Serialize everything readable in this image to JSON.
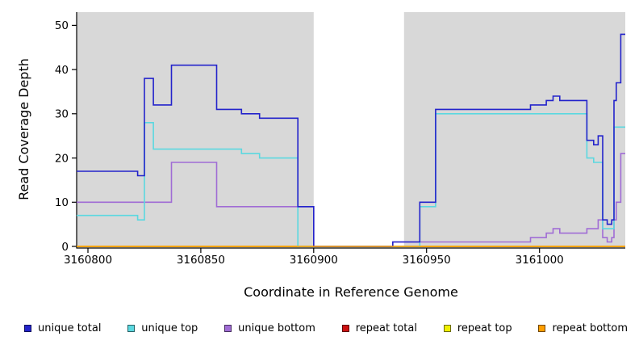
{
  "chart_data": {
    "type": "line",
    "subtype": "step-coverage",
    "title": "",
    "xlabel": "Coordinate in Reference Genome",
    "ylabel": "Read Coverage Depth",
    "xlim": [
      3160795,
      3161038
    ],
    "ylim": [
      0,
      53
    ],
    "x_ticks": [
      3160800,
      3160850,
      3160900,
      3160950,
      3161000
    ],
    "y_ticks": [
      0,
      10,
      20,
      30,
      40,
      50
    ],
    "grid": false,
    "legend_position": "bottom",
    "plot_background": "#ffffff",
    "shaded_regions": [
      {
        "x0": 3160795,
        "x1": 3160900,
        "color": "#d8d8d8"
      },
      {
        "x0": 3160940,
        "x1": 3161038,
        "color": "#d8d8d8"
      }
    ],
    "draw_order": [
      "repeat total",
      "repeat top",
      "unique bottom",
      "unique top",
      "unique total",
      "repeat bottom"
    ],
    "series": [
      {
        "name": "unique total",
        "color": "#2323cb",
        "steps": [
          [
            3160795,
            17
          ],
          [
            3160822,
            16
          ],
          [
            3160825,
            38
          ],
          [
            3160829,
            32
          ],
          [
            3160837,
            41
          ],
          [
            3160857,
            31
          ],
          [
            3160868,
            30
          ],
          [
            3160876,
            29
          ],
          [
            3160893,
            9
          ],
          [
            3160900,
            0
          ],
          [
            3160935,
            1
          ],
          [
            3160947,
            10
          ],
          [
            3160954,
            31
          ],
          [
            3160996,
            32
          ],
          [
            3161003,
            33
          ],
          [
            3161006,
            34
          ],
          [
            3161009,
            33
          ],
          [
            3161021,
            24
          ],
          [
            3161024,
            23
          ],
          [
            3161026,
            25
          ],
          [
            3161028,
            6
          ],
          [
            3161030,
            5
          ],
          [
            3161032,
            6
          ],
          [
            3161033,
            33
          ],
          [
            3161034,
            37
          ],
          [
            3161036,
            48
          ]
        ]
      },
      {
        "name": "unique top",
        "color": "#5bd8e0",
        "steps": [
          [
            3160795,
            7
          ],
          [
            3160822,
            6
          ],
          [
            3160825,
            28
          ],
          [
            3160829,
            22
          ],
          [
            3160868,
            21
          ],
          [
            3160876,
            20
          ],
          [
            3160893,
            0
          ],
          [
            3160947,
            9
          ],
          [
            3160954,
            30
          ],
          [
            3161021,
            20
          ],
          [
            3161024,
            19
          ],
          [
            3161028,
            4
          ],
          [
            3161033,
            27
          ]
        ]
      },
      {
        "name": "unique bottom",
        "color": "#a06cd5",
        "steps": [
          [
            3160795,
            10
          ],
          [
            3160837,
            19
          ],
          [
            3160857,
            9
          ],
          [
            3160900,
            0
          ],
          [
            3160935,
            1
          ],
          [
            3160996,
            2
          ],
          [
            3161003,
            3
          ],
          [
            3161006,
            4
          ],
          [
            3161009,
            3
          ],
          [
            3161021,
            4
          ],
          [
            3161026,
            6
          ],
          [
            3161028,
            2
          ],
          [
            3161030,
            1
          ],
          [
            3161032,
            2
          ],
          [
            3161033,
            6
          ],
          [
            3161034,
            10
          ],
          [
            3161036,
            21
          ]
        ]
      },
      {
        "name": "repeat total",
        "color": "#cc1111",
        "steps": [
          [
            3160795,
            0
          ]
        ]
      },
      {
        "name": "repeat top",
        "color": "#f0f000",
        "steps": [
          [
            3160795,
            0
          ]
        ]
      },
      {
        "name": "repeat bottom",
        "color": "#ff9e00",
        "steps": [
          [
            3160795,
            0
          ]
        ]
      }
    ]
  }
}
